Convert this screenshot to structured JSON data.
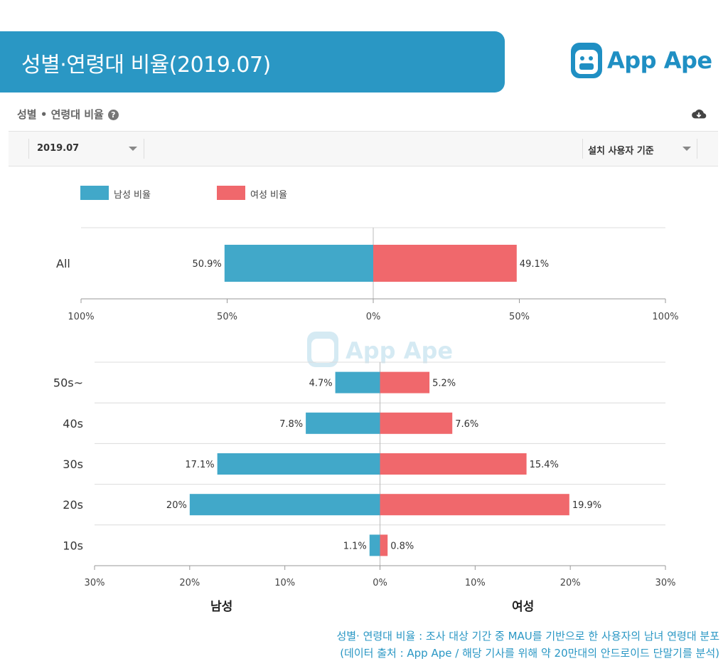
{
  "header": {
    "title": "성별·연령대 비율(2019.07)"
  },
  "logo": {
    "text": "App Ape",
    "icon": "app-ape-monkey-icon",
    "color": "#1f8fc3"
  },
  "panel": {
    "heading": "성별 • 연령대 비율",
    "help_icon": "help-circle-icon",
    "download_icon": "cloud-download-icon"
  },
  "filters": {
    "date": "2019.07",
    "basis": "설치 사용자 기준"
  },
  "legend": {
    "male": {
      "label": "남성 비율",
      "color": "#41a8c9"
    },
    "female": {
      "label": "여성 비율",
      "color": "#f0686c"
    }
  },
  "chart_data": [
    {
      "type": "bar",
      "orientation": "horizontal-diverging",
      "categories": [
        "All"
      ],
      "series": [
        {
          "name": "남성 비율",
          "values": [
            50.9
          ]
        },
        {
          "name": "여성 비율",
          "values": [
            49.1
          ]
        }
      ],
      "value_labels": {
        "male": [
          "50.9%"
        ],
        "female": [
          "49.1%"
        ]
      },
      "xlim": [
        -100,
        100
      ],
      "ticks": [
        "100%",
        "50%",
        "0%",
        "50%",
        "100%"
      ],
      "grid": true
    },
    {
      "type": "bar",
      "orientation": "horizontal-diverging",
      "categories": [
        "50s~",
        "40s",
        "30s",
        "20s",
        "10s"
      ],
      "series": [
        {
          "name": "남성 비율",
          "values": [
            4.7,
            7.8,
            17.1,
            20,
            1.1
          ]
        },
        {
          "name": "여성 비율",
          "values": [
            5.2,
            7.6,
            15.4,
            19.9,
            0.8
          ]
        }
      ],
      "value_labels": {
        "male": [
          "4.7%",
          "7.8%",
          "17.1%",
          "20%",
          "1.1%"
        ],
        "female": [
          "5.2%",
          "7.6%",
          "15.4%",
          "19.9%",
          "0.8%"
        ]
      },
      "xlim": [
        -30,
        30
      ],
      "ticks": [
        "30%",
        "20%",
        "10%",
        "0%",
        "10%",
        "20%",
        "30%"
      ],
      "xlabel_left": "남성",
      "xlabel_right": "여성",
      "grid": true
    }
  ],
  "footnote": {
    "line1": "성별· 연령대 비율 : 조사 대상 기간 중 MAU를 기반으로 한 사용자의 남녀 연령대 분포",
    "line2": "(데이터 출처 : App Ape / 해당 기사를 위해 약 20만대의 안드로이드 단말기를 분석)"
  }
}
